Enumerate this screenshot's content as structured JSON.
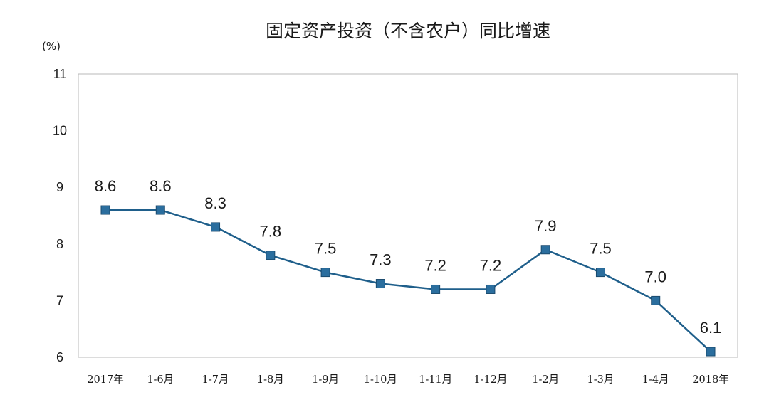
{
  "chart_data": {
    "type": "line",
    "title": "固定资产投资（不含农户）同比增速",
    "ylabel": "(%)",
    "xlabel": "",
    "categories": [
      "2017年",
      "1-6月",
      "1-7月",
      "1-8月",
      "1-9月",
      "1-10月",
      "1-11月",
      "1-12月",
      "1-2月",
      "1-3月",
      "1-4月",
      "2018年"
    ],
    "series": [
      {
        "values": [
          8.6,
          8.6,
          8.3,
          7.8,
          7.5,
          7.3,
          7.2,
          7.2,
          7.9,
          7.5,
          7.0,
          6.1
        ],
        "labels": [
          "8.6",
          "8.6",
          "8.3",
          "7.8",
          "7.5",
          "7.3",
          "7.2",
          "7.2",
          "7.9",
          "7.5",
          "7.0",
          "6.1"
        ],
        "color": "#1f5f8b",
        "marker_color": "#2b6e9e"
      }
    ],
    "ylim": [
      6,
      11
    ],
    "yticks": [
      "6",
      "7",
      "8",
      "9",
      "10",
      "11"
    ],
    "grid": false,
    "legend": "none"
  }
}
